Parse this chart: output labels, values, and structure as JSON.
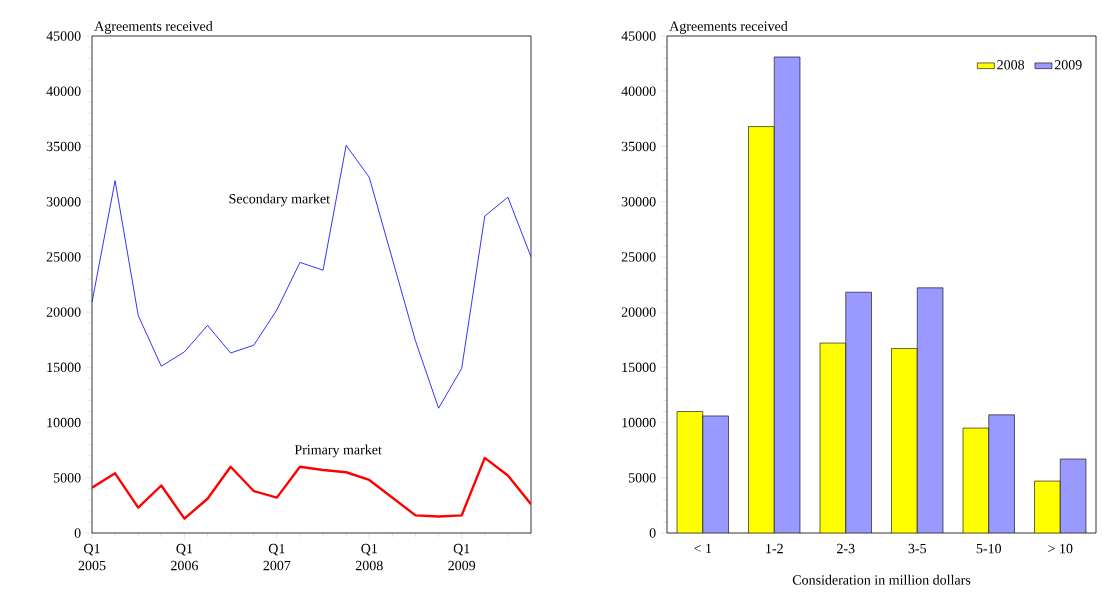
{
  "chart_data": [
    {
      "type": "line",
      "ylabel": "Agreements received",
      "categories": [
        "Q1 2005",
        null,
        null,
        null,
        "Q1 2006",
        null,
        null,
        null,
        "Q1 2007",
        null,
        null,
        null,
        "Q1 2008",
        null,
        null,
        null,
        "Q1 2009",
        null,
        null,
        null
      ],
      "series": [
        {
          "name": "Secondary market",
          "color": "#0000ff",
          "values": [
            20900,
            31900,
            19700,
            15100,
            16400,
            18800,
            16300,
            17000,
            20200,
            24500,
            23800,
            35100,
            32200,
            24800,
            17400,
            11300,
            14900,
            28700,
            30400,
            25000
          ]
        },
        {
          "name": "Primary market",
          "color": "#ff0000",
          "values": [
            4100,
            5400,
            2300,
            4300,
            1300,
            3100,
            6000,
            3800,
            3200,
            6000,
            5700,
            5500,
            4800,
            3200,
            1600,
            1500,
            1600,
            6800,
            5200,
            2600
          ]
        }
      ],
      "ylim": [
        0,
        45000
      ],
      "yticks": [
        0,
        5000,
        10000,
        15000,
        20000,
        25000,
        30000,
        35000,
        40000,
        45000
      ],
      "legend": false
    },
    {
      "type": "bar",
      "ylabel": "Agreements received",
      "xlabel": "Consideration in million dollars",
      "categories": [
        "< 1",
        "1-2",
        "2-3",
        "3-5",
        "5-10",
        "> 10"
      ],
      "series": [
        {
          "name": "2008",
          "color": "#ffff00",
          "values": [
            11000,
            36800,
            17200,
            16700,
            9500,
            4700
          ]
        },
        {
          "name": "2009",
          "color": "#9999ff",
          "values": [
            10600,
            43100,
            21800,
            22200,
            10700,
            6700
          ]
        }
      ],
      "ylim": [
        0,
        45000
      ],
      "yticks": [
        0,
        5000,
        10000,
        15000,
        20000,
        25000,
        30000,
        35000,
        40000,
        45000
      ],
      "legend": "top right"
    }
  ]
}
